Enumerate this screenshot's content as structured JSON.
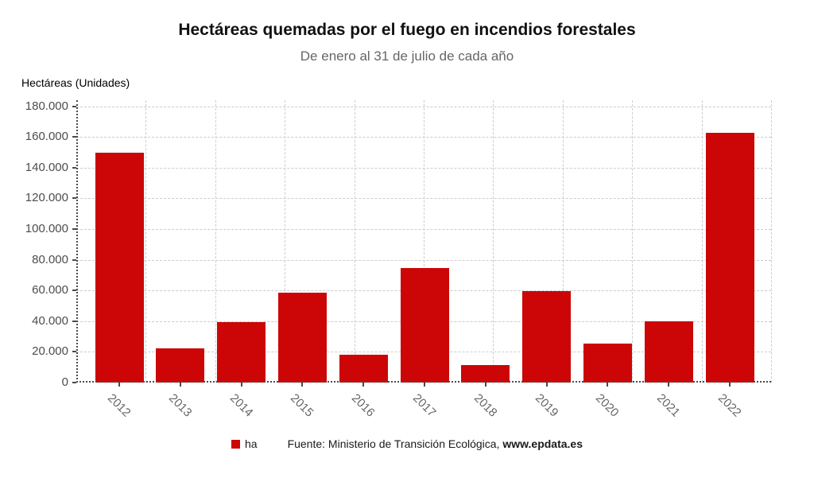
{
  "chart_data": {
    "type": "bar",
    "title": "Hectáreas quemadas por el fuego en incendios forestales",
    "subtitle": "De enero al 31 de julio de cada año",
    "y_axis_title": "Hectáreas (Unidades)",
    "categories": [
      "2012",
      "2013",
      "2014",
      "2015",
      "2016",
      "2017",
      "2018",
      "2019",
      "2020",
      "2021",
      "2022"
    ],
    "series": [
      {
        "name": "ha",
        "values": [
          150000,
          22300,
          39200,
          58400,
          18300,
          74800,
          11200,
          59800,
          25500,
          40000,
          162700
        ]
      }
    ],
    "ylim": [
      0,
      184000
    ],
    "ytick_interval": 20000,
    "ytick_labels": [
      "0",
      "20.000",
      "40.000",
      "60.000",
      "80.000",
      "100.000",
      "120.000",
      "140.000",
      "160.000",
      "180.000"
    ],
    "grid": true,
    "legend_position": "bottom",
    "bar_color": "#cc0606"
  },
  "footer": {
    "legend_label": "ha",
    "source_prefix": "Fuente: Ministerio de Transición Ecológica, ",
    "source_site": "www.epdata.es"
  },
  "colors": {
    "bar": "#cc0606",
    "grid": "#cccccc",
    "axis": "#4a4a4a",
    "title": "#111111",
    "subtitle": "#666666",
    "ytick": "#4d4d4d",
    "xtick": "#666666",
    "footer_text": "#1a1a1a"
  }
}
